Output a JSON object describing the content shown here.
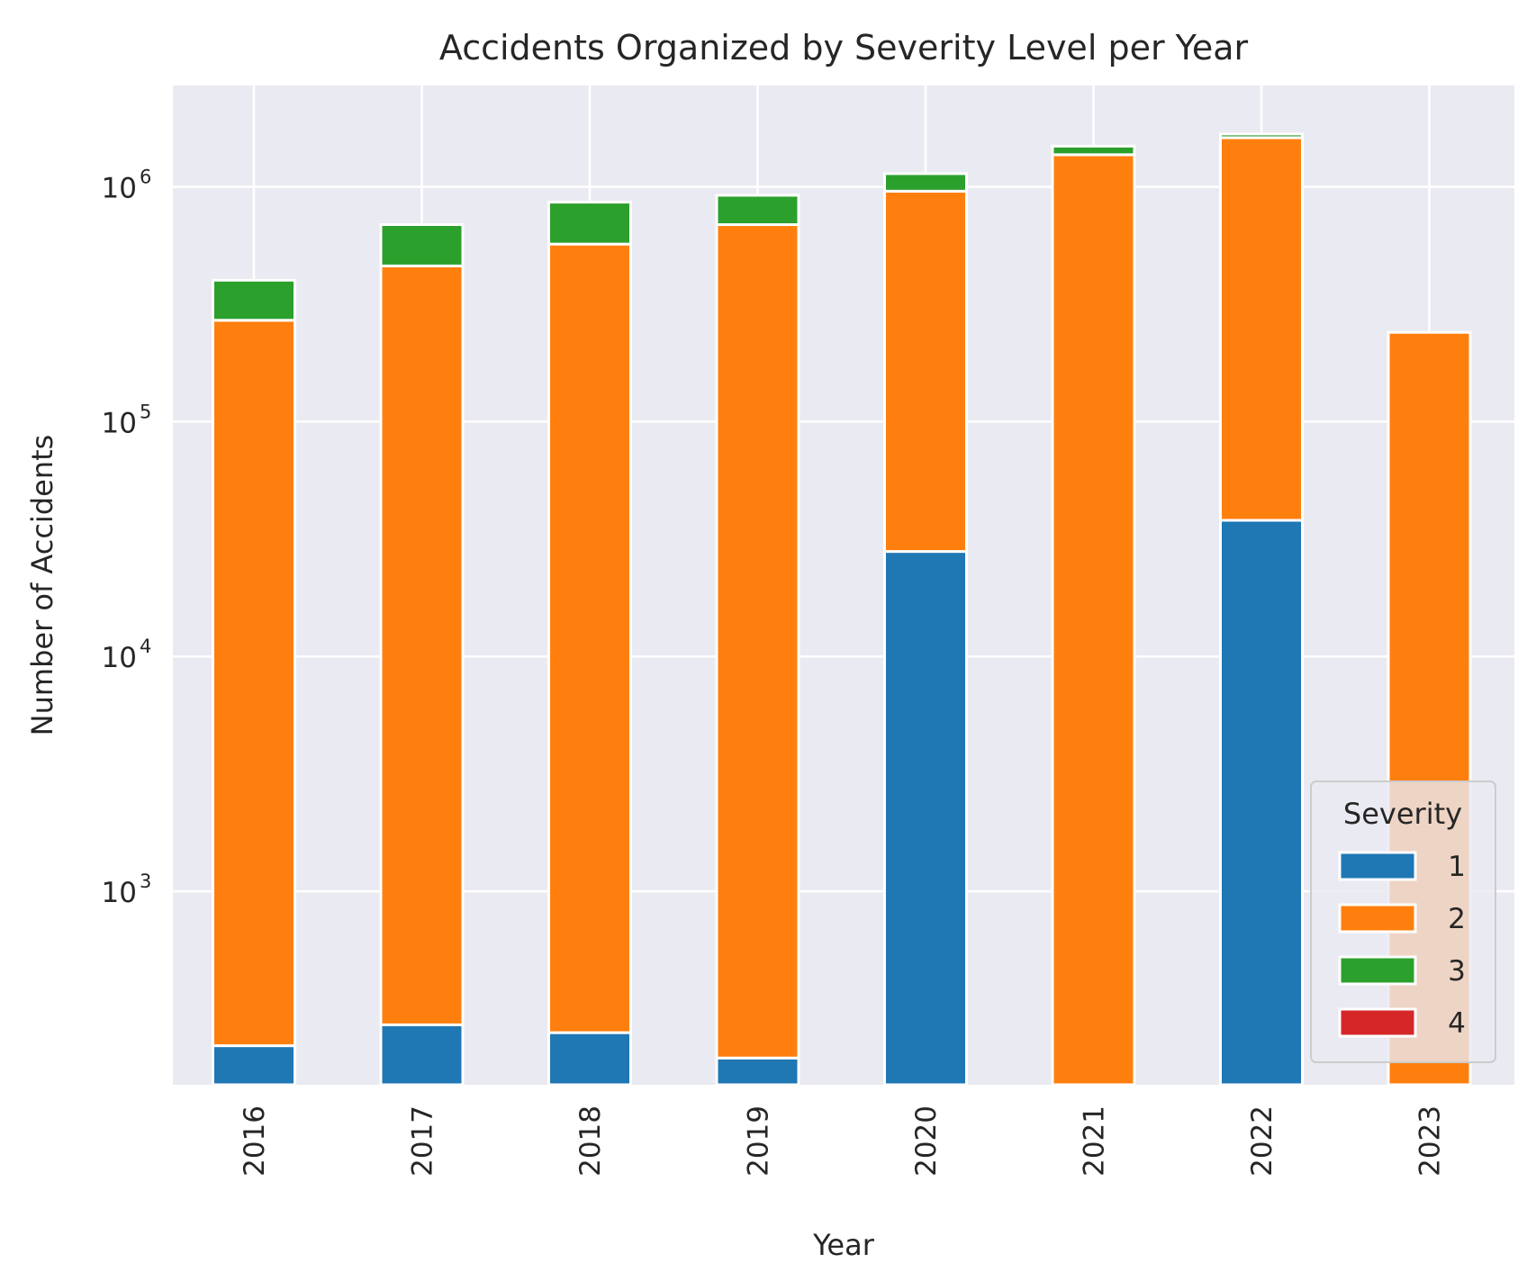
{
  "chart_data": {
    "type": "bar",
    "stacked": true,
    "title": "Accidents Organized by Severity Level per Year",
    "xlabel": "Year",
    "ylabel": "Number of Accidents",
    "yscale": "log",
    "ylim": [
      150,
      2700000
    ],
    "grid": true,
    "categories": [
      "2016",
      "2017",
      "2018",
      "2019",
      "2020",
      "2021",
      "2022",
      "2023"
    ],
    "y_ticks": [
      {
        "value": 1000,
        "base": "10",
        "exp": "3"
      },
      {
        "value": 10000,
        "base": "10",
        "exp": "4"
      },
      {
        "value": 100000,
        "base": "10",
        "exp": "5"
      },
      {
        "value": 1000000,
        "base": "10",
        "exp": "6"
      }
    ],
    "series": [
      {
        "name": "1",
        "color": "#1f77b4",
        "values": [
          220,
          270,
          250,
          195,
          28000,
          0,
          38000,
          0
        ]
      },
      {
        "name": "2",
        "color": "#ff7f0e",
        "values": [
          270000,
          460000,
          570000,
          690000,
          930000,
          1370000,
          1580000,
          240000
        ]
      },
      {
        "name": "3",
        "color": "#2ca02c",
        "values": [
          130000,
          230000,
          290000,
          230000,
          180000,
          120000,
          60000,
          0
        ]
      },
      {
        "name": "4",
        "color": "#d62728",
        "values": [
          0,
          0,
          0,
          0,
          0,
          0,
          0,
          0
        ]
      }
    ],
    "legend": {
      "title": "Severity",
      "position": "lower-right"
    }
  }
}
